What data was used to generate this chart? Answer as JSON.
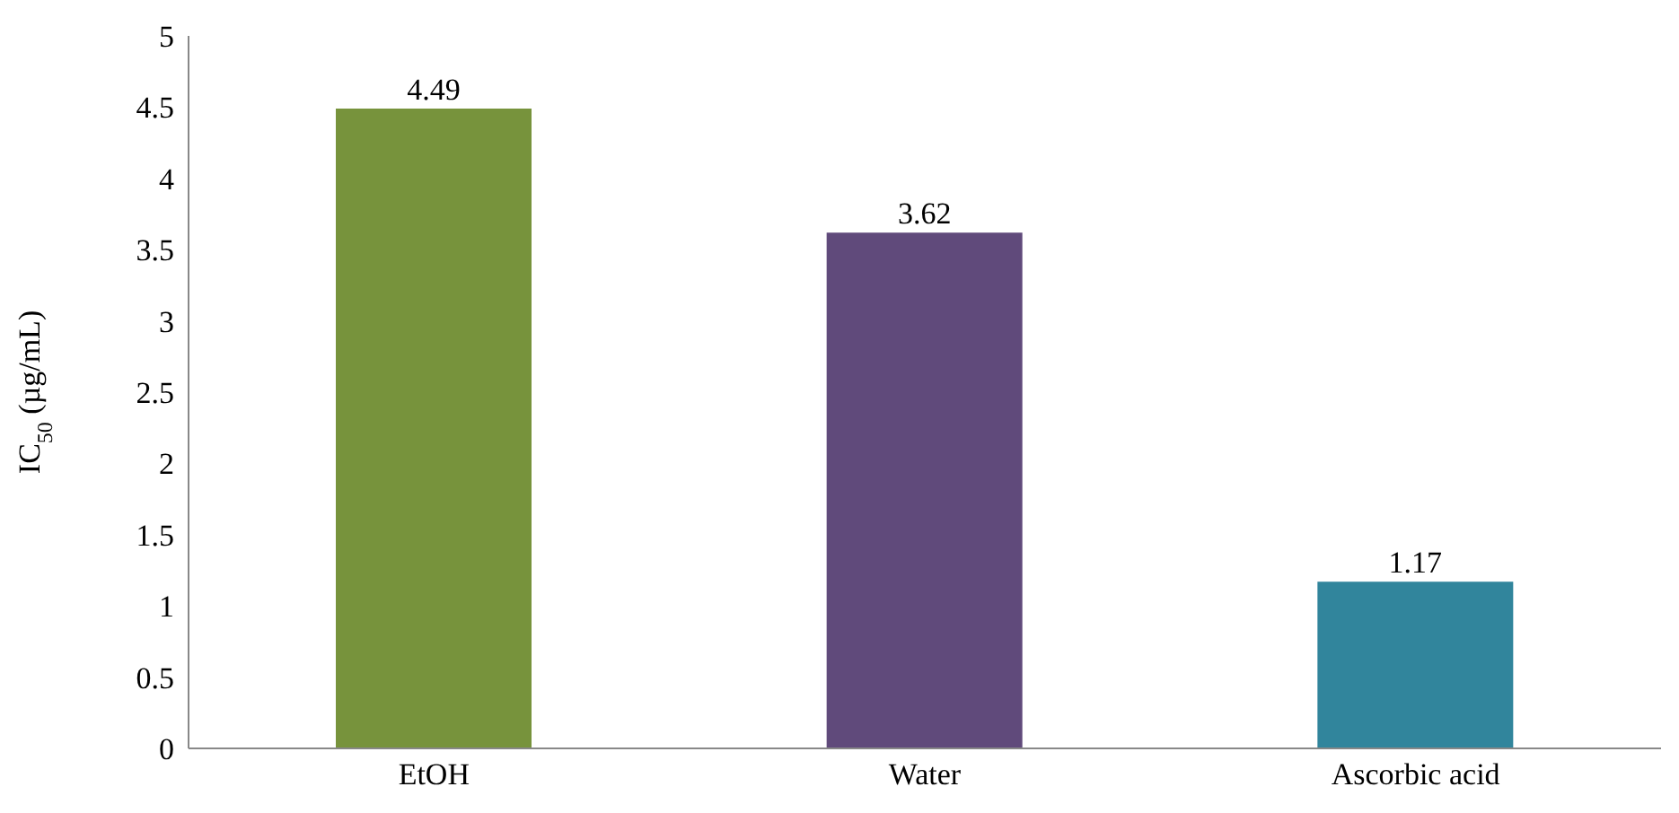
{
  "chart_data": {
    "type": "bar",
    "ylabel": "IC$_{50}$ (µg/mL)",
    "categories": [
      "EtOH",
      "Water",
      "Ascorbic acid"
    ],
    "values": [
      4.49,
      3.62,
      1.17
    ],
    "colors": [
      "#77933c",
      "#604a7b",
      "#31859c"
    ],
    "ylim": [
      0,
      5
    ],
    "yticks": [
      0,
      0.5,
      1,
      1.5,
      2,
      2.5,
      3,
      3.5,
      4,
      4.5,
      5
    ],
    "data_labels": true,
    "grid": false,
    "legend": false
  }
}
